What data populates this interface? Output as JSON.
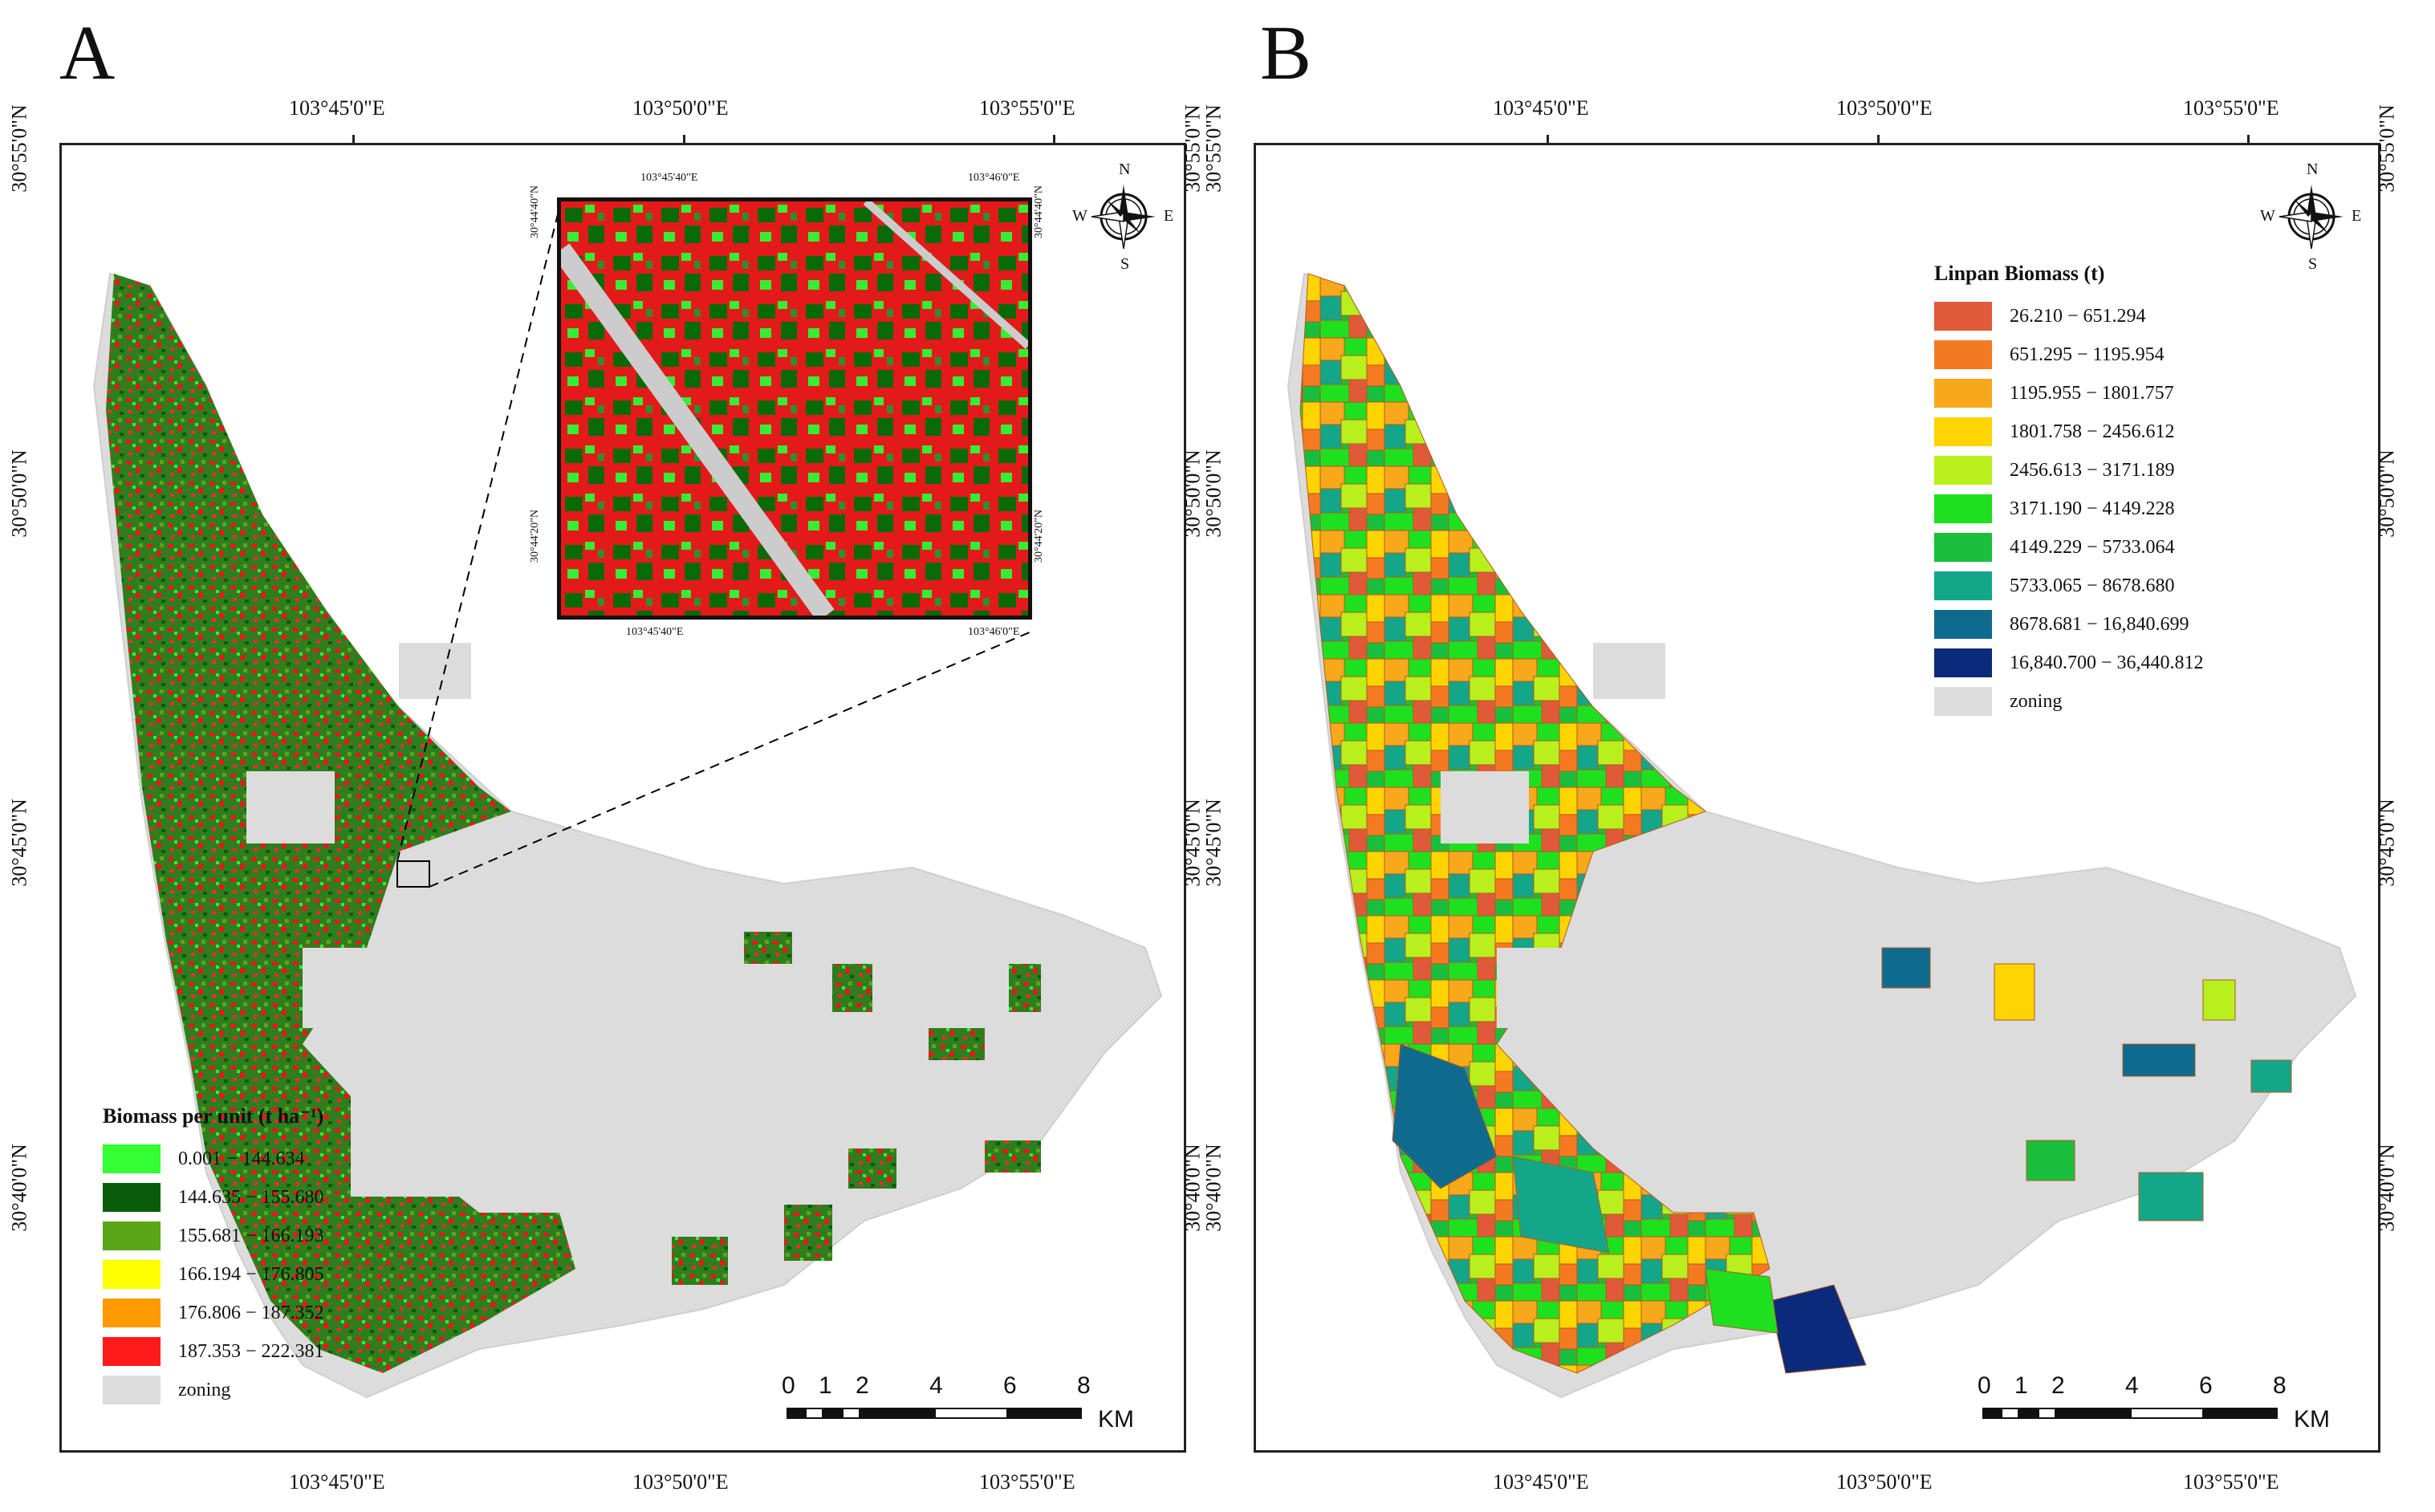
{
  "panels": {
    "a": {
      "letter": "A",
      "top_labels": [
        "103°45'0\"E",
        "103°50'0\"E",
        "103°55'0\"E"
      ],
      "bottom_labels": [
        "103°45'0\"E",
        "103°50'0\"E",
        "103°55'0\"E"
      ],
      "left_labels": [
        "30°55'0\"N",
        "30°50'0\"N",
        "30°45'0\"N",
        "30°40'0\"N"
      ],
      "right_labels": [
        "30°55'0\"N",
        "30°50'0\"N",
        "30°45'0\"N",
        "30°40'0\"N"
      ],
      "legend_title": "Biomass per unit (t ha⁻¹)",
      "legend": [
        {
          "label": "0.001 − 144.634",
          "color": "#33ff33"
        },
        {
          "label": "144.635 − 155.680",
          "color": "#0a5c0a"
        },
        {
          "label": "155.681 − 166.193",
          "color": "#5aa618"
        },
        {
          "label": "166.194 − 176.805",
          "color": "#ffff00"
        },
        {
          "label": "176.806 − 187.352",
          "color": "#ff9900"
        },
        {
          "label": "187.353 − 222.381",
          "color": "#ff1a1a"
        },
        {
          "label": "zoning",
          "color": "#dcdcdc"
        }
      ],
      "inset": {
        "top_labels": [
          "103°45'40\"E",
          "103°46'0\"E"
        ],
        "bottom_labels": [
          "103°45'40\"E",
          "103°46'0\"E"
        ],
        "left_labels": [
          "30°44'40\"N",
          "30°44'20\"N"
        ],
        "right_labels": [
          "30°44'40\"N",
          "30°44'20\"N"
        ]
      },
      "scale": {
        "ticks": [
          "0",
          "1",
          "2",
          "4",
          "6",
          "8"
        ],
        "unit": "KM"
      },
      "compass": {
        "n": "N",
        "s": "S",
        "e": "E",
        "w": "W"
      }
    },
    "b": {
      "letter": "B",
      "top_labels": [
        "103°45'0\"E",
        "103°50'0\"E",
        "103°55'0\"E"
      ],
      "bottom_labels": [
        "103°45'0\"E",
        "103°50'0\"E",
        "103°55'0\"E"
      ],
      "left_labels": [
        "30°55'0\"N",
        "30°50'0\"N",
        "30°45'0\"N",
        "30°40'0\"N"
      ],
      "right_labels": [
        "30°55'0\"N",
        "30°50'0\"N",
        "30°45'0\"N",
        "30°40'0\"N"
      ],
      "legend_title": "Linpan Biomass (t)",
      "legend": [
        {
          "label": "26.210 − 651.294",
          "color": "#e05a3a"
        },
        {
          "label": "651.295 − 1195.954",
          "color": "#f47a22"
        },
        {
          "label": "1195.955 − 1801.757",
          "color": "#f7a81b"
        },
        {
          "label": "1801.758 − 2456.612",
          "color": "#ffd400"
        },
        {
          "label": "2456.613 − 3171.189",
          "color": "#b9ef1c"
        },
        {
          "label": "3171.190 − 4149.228",
          "color": "#1ee01e"
        },
        {
          "label": "4149.229 − 5733.064",
          "color": "#19bf3c"
        },
        {
          "label": "5733.065 − 8678.680",
          "color": "#13a689"
        },
        {
          "label": "8678.681 − 16,840.699",
          "color": "#0f6b8e"
        },
        {
          "label": "16,840.700 − 36,440.812",
          "color": "#0a2a7c"
        },
        {
          "label": "zoning",
          "color": "#dcdcdc"
        }
      ],
      "scale": {
        "ticks": [
          "0",
          "1",
          "2",
          "4",
          "6",
          "8"
        ],
        "unit": "KM"
      },
      "compass": {
        "n": "N",
        "s": "S",
        "e": "E",
        "w": "W"
      }
    }
  }
}
